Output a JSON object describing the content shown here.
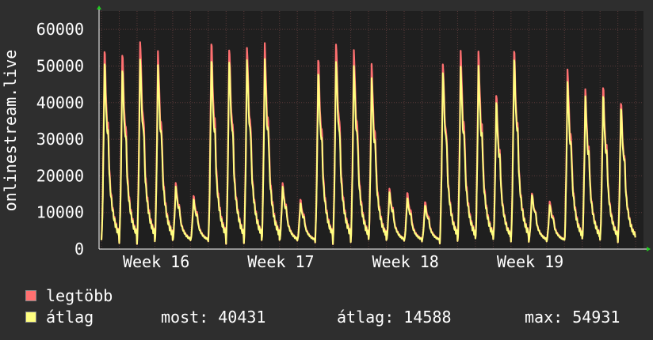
{
  "chart_data": {
    "type": "line",
    "ylabel": "onlinestream.live",
    "ylim": [
      0,
      65000
    ],
    "y_ticks": [
      0,
      10000,
      20000,
      30000,
      40000,
      50000,
      60000
    ],
    "x_ticks": [
      "Week 16",
      "Week 17",
      "Week 18",
      "Week 19"
    ],
    "grid": true,
    "series": [
      {
        "name": "legtöbb",
        "color": "#ff7070",
        "daily_peaks": [
          56500,
          56000,
          59500,
          56000,
          18500,
          15000,
          59000,
          57500,
          57500,
          58000,
          18500,
          14000,
          54500,
          59000,
          56500,
          52000,
          17000,
          16000,
          13500,
          53000,
          56000,
          55500,
          43500,
          57000,
          16000,
          13500,
          50500,
          45000,
          46000,
          42000
        ]
      },
      {
        "name": "átlag",
        "color": "#ffff80",
        "daily_peaks": [
          53000,
          51500,
          54500,
          52000,
          17500,
          14000,
          54000,
          54000,
          54000,
          53500,
          17500,
          13000,
          50500,
          54000,
          52000,
          48000,
          16000,
          14500,
          12500,
          50500,
          51500,
          51500,
          41500,
          54500,
          15500,
          12500,
          47000,
          43000,
          43500,
          40431
        ]
      }
    ]
  },
  "legend": {
    "max_label": "legtöbb",
    "avg_label": "átlag"
  },
  "stats": {
    "current": "most: 40431",
    "average": "átlag: 14588",
    "maximum": "max: 54931"
  },
  "colors": {
    "background": "#2e2e2e",
    "plot": "#1f1f1f",
    "grid": "#5a3a3a",
    "axis": "#ffffff",
    "arrow": "#22cc22"
  }
}
